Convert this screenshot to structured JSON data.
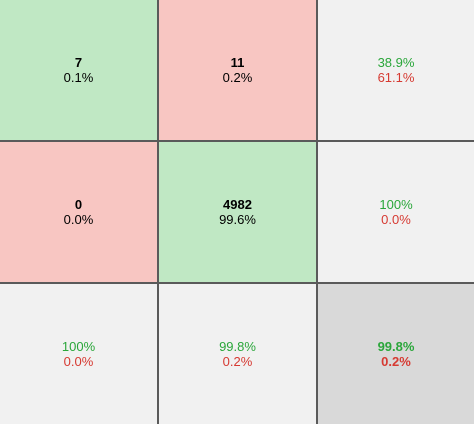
{
  "matrix": {
    "rows": [
      [
        {
          "top": "7",
          "bottom": "0.1%"
        },
        {
          "top": "11",
          "bottom": "0.2%"
        },
        {
          "top": "38.9%",
          "bottom": "61.1%"
        }
      ],
      [
        {
          "top": "0",
          "bottom": "0.0%"
        },
        {
          "top": "4982",
          "bottom": "99.6%"
        },
        {
          "top": "100%",
          "bottom": "0.0%"
        }
      ],
      [
        {
          "top": "100%",
          "bottom": "0.0%"
        },
        {
          "top": "99.8%",
          "bottom": "0.2%"
        },
        {
          "top": "99.8%",
          "bottom": "0.2%"
        }
      ]
    ]
  }
}
